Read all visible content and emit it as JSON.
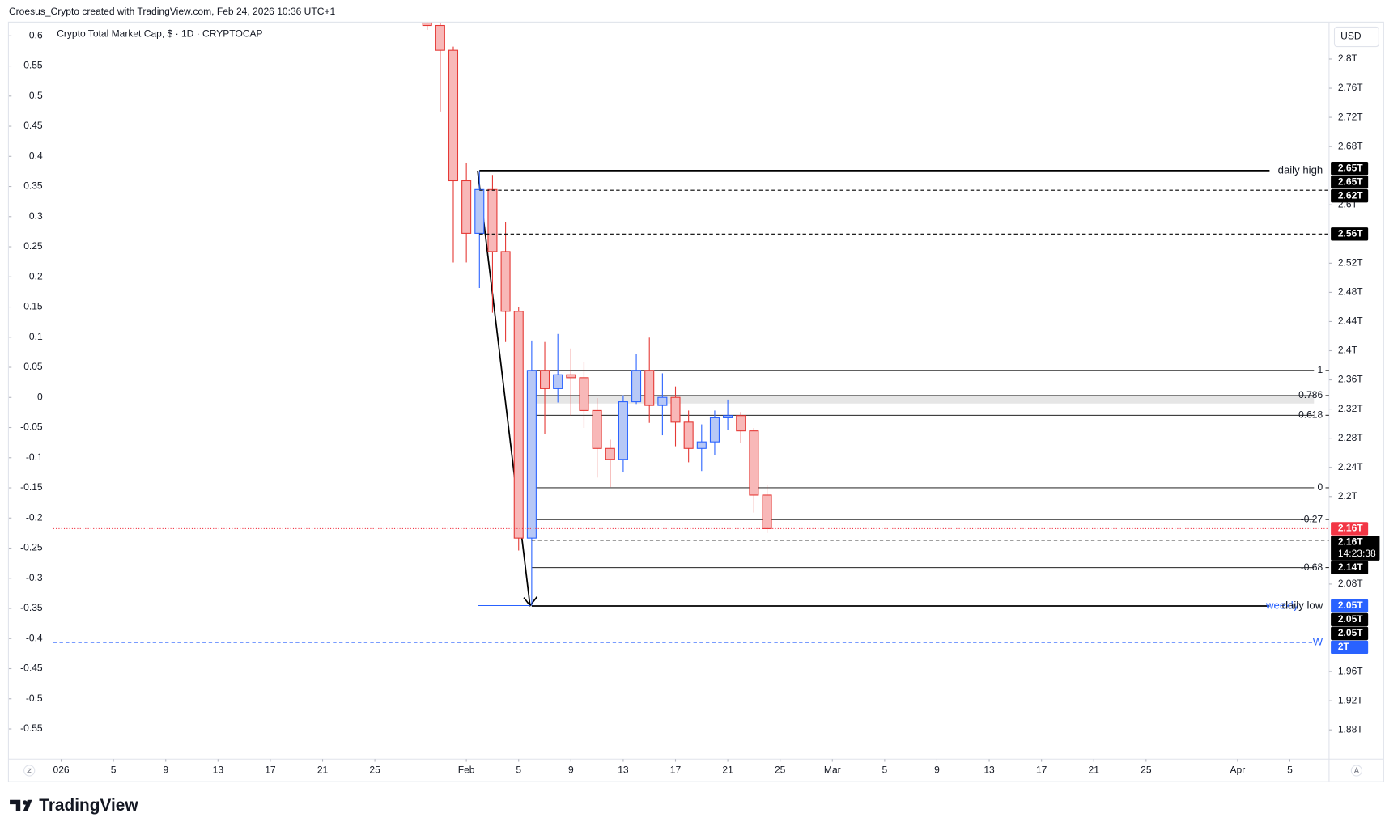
{
  "header": {
    "attribution": "Croesus_Crypto created with TradingView.com, Feb 24, 2026 10:36 UTC+1"
  },
  "footer": {
    "brand": "TradingView"
  },
  "chart_data": {
    "type": "candlestick",
    "title": "Crypto Total Market Cap, $ · 1D · CRYPTOCAP",
    "currency": "USD",
    "x": [
      "2026-01-29",
      "2026-01-30",
      "2026-01-31",
      "2026-02-01",
      "2026-02-02",
      "2026-02-03",
      "2026-02-04",
      "2026-02-05",
      "2026-02-06",
      "2026-02-07",
      "2026-02-08",
      "2026-02-09",
      "2026-02-10",
      "2026-02-11",
      "2026-02-12",
      "2026-02-13",
      "2026-02-14",
      "2026-02-15",
      "2026-02-16",
      "2026-02-17",
      "2026-02-18",
      "2026-02-19",
      "2026-02-20",
      "2026-02-21",
      "2026-02-22",
      "2026-02-23",
      "2026-02-24"
    ],
    "open": [
      2.855,
      2.846,
      2.812,
      2.633,
      2.561,
      2.621,
      2.536,
      2.454,
      2.143,
      2.373,
      2.348,
      2.367,
      2.363,
      2.318,
      2.266,
      2.251,
      2.33,
      2.373,
      2.325,
      2.336,
      2.302,
      2.266,
      2.275,
      2.308,
      2.311,
      2.29,
      2.202
    ],
    "high": [
      2.86,
      2.85,
      2.817,
      2.658,
      2.647,
      2.641,
      2.576,
      2.46,
      2.414,
      2.412,
      2.423,
      2.403,
      2.384,
      2.335,
      2.278,
      2.339,
      2.396,
      2.418,
      2.369,
      2.351,
      2.318,
      2.299,
      2.318,
      2.333,
      2.316,
      2.294,
      2.216
    ],
    "low": [
      2.84,
      2.728,
      2.521,
      2.521,
      2.486,
      2.452,
      2.412,
      2.126,
      2.05,
      2.286,
      2.329,
      2.311,
      2.294,
      2.226,
      2.213,
      2.233,
      2.327,
      2.301,
      2.284,
      2.269,
      2.247,
      2.235,
      2.257,
      2.291,
      2.274,
      2.178,
      2.15
    ],
    "close": [
      2.846,
      2.812,
      2.633,
      2.561,
      2.621,
      2.536,
      2.454,
      2.143,
      2.373,
      2.348,
      2.367,
      2.363,
      2.318,
      2.266,
      2.251,
      2.33,
      2.373,
      2.325,
      2.336,
      2.302,
      2.266,
      2.275,
      2.308,
      2.311,
      2.29,
      2.202,
      2.156
    ],
    "up_color": "#2962ff",
    "up_fill": "#b7c8f6",
    "down_color": "#e53935",
    "down_fill": "#f8b8b8",
    "xlim": [
      "2025-12-28",
      "2026-04-08"
    ],
    "xticks": [
      {
        "value": "2026-01-01",
        "label": "026"
      },
      {
        "value": "2026-01-05",
        "label": "5"
      },
      {
        "value": "2026-01-09",
        "label": "9"
      },
      {
        "value": "2026-01-13",
        "label": "13"
      },
      {
        "value": "2026-01-17",
        "label": "17"
      },
      {
        "value": "2026-01-21",
        "label": "21"
      },
      {
        "value": "2026-01-25",
        "label": "25"
      },
      {
        "value": "2026-02-01",
        "label": "Feb"
      },
      {
        "value": "2026-02-05",
        "label": "5"
      },
      {
        "value": "2026-02-09",
        "label": "9"
      },
      {
        "value": "2026-02-13",
        "label": "13"
      },
      {
        "value": "2026-02-17",
        "label": "17"
      },
      {
        "value": "2026-02-21",
        "label": "21"
      },
      {
        "value": "2026-02-25",
        "label": "25"
      },
      {
        "value": "2026-03-01",
        "label": "Mar"
      },
      {
        "value": "2026-03-05",
        "label": "5"
      },
      {
        "value": "2026-03-09",
        "label": "9"
      },
      {
        "value": "2026-03-13",
        "label": "13"
      },
      {
        "value": "2026-03-17",
        "label": "17"
      },
      {
        "value": "2026-03-21",
        "label": "21"
      },
      {
        "value": "2026-03-25",
        "label": "25"
      },
      {
        "value": "2026-04-01",
        "label": "Apr"
      },
      {
        "value": "2026-04-05",
        "label": "5"
      }
    ],
    "ylim": [
      1.84,
      2.85
    ],
    "yticks": [
      {
        "value": 2.8,
        "label": "2.8T"
      },
      {
        "value": 2.76,
        "label": "2.76T"
      },
      {
        "value": 2.72,
        "label": "2.72T"
      },
      {
        "value": 2.68,
        "label": "2.68T"
      },
      {
        "value": 2.6,
        "label": "2.6T"
      },
      {
        "value": 2.52,
        "label": "2.52T"
      },
      {
        "value": 2.48,
        "label": "2.48T"
      },
      {
        "value": 2.44,
        "label": "2.44T"
      },
      {
        "value": 2.4,
        "label": "2.4T"
      },
      {
        "value": 2.36,
        "label": "2.36T"
      },
      {
        "value": 2.32,
        "label": "2.32T"
      },
      {
        "value": 2.28,
        "label": "2.28T"
      },
      {
        "value": 2.24,
        "label": "2.24T"
      },
      {
        "value": 2.2,
        "label": "2.2T"
      },
      {
        "value": 2.08,
        "label": "2.08T"
      },
      {
        "value": 1.96,
        "label": "1.96T"
      },
      {
        "value": 1.92,
        "label": "1.92T"
      },
      {
        "value": 1.88,
        "label": "1.88T"
      }
    ],
    "y2lim": [
      -0.6,
      0.622
    ],
    "y2ticks": [
      0.6,
      0.55,
      0.5,
      0.45,
      0.4,
      0.35,
      0.3,
      0.25,
      0.2,
      0.15,
      0.1,
      0.05,
      0,
      -0.05,
      -0.1,
      -0.15,
      -0.2,
      -0.25,
      -0.3,
      -0.35,
      -0.4,
      -0.45,
      -0.5,
      -0.55
    ],
    "grid": false,
    "fib": {
      "high": 2.373,
      "low": 2.212,
      "from": "2026-02-06",
      "levels": [
        1,
        0.786,
        0.618,
        0,
        -0.27,
        -0.68
      ]
    },
    "levels": [
      {
        "value": 2.65,
        "label": "2.65T",
        "color": "#000000"
      },
      {
        "value": 2.647,
        "label": "2.65T",
        "color": "#000000",
        "line": "solid",
        "line_color": "#000000",
        "from": "2026-02-02",
        "text": "daily high"
      },
      {
        "value": 2.62,
        "label": "2.62T",
        "color": "#000000",
        "line": "dashed",
        "line_color": "#000000",
        "from": "2026-02-02"
      },
      {
        "value": 2.56,
        "label": "2.56T",
        "color": "#000000",
        "line": "dashed",
        "line_color": "#000000",
        "from": "2026-02-02"
      },
      {
        "value": 2.156,
        "label": "2.16T",
        "color": "#f23645",
        "line": "dotted",
        "line_color": "#f23645"
      },
      {
        "value": 2.156,
        "label": "2.16T",
        "color": "#000000",
        "countdown": "14:23:38"
      },
      {
        "value": 2.14,
        "label": "2.14T",
        "color": "#000000",
        "line": "dashed",
        "line_color": "#000000",
        "from": "2026-02-06"
      },
      {
        "value": 2.05,
        "label": "2.05T",
        "color": "#2962ff",
        "line": "solid",
        "line_color": "#000000",
        "from": "2026-02-06",
        "text": "daily low",
        "text2": "weekly"
      },
      {
        "value": 2.05,
        "label": "2.05T",
        "color": "#000000"
      },
      {
        "value": 2.05,
        "label": "2.05T",
        "color": "#000000"
      },
      {
        "value": 2,
        "label": "2T",
        "color": "#2962ff",
        "line": "dashed",
        "line_color": "#2962ff",
        "text": "W"
      }
    ]
  }
}
